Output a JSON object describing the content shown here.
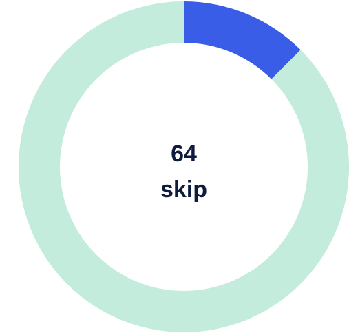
{
  "chart_data": {
    "type": "donut",
    "values": [
      12.5,
      87.5
    ],
    "colors": [
      "#3a5de8",
      "#c3ecdc"
    ],
    "center_value": 64,
    "center_label": "skip"
  }
}
